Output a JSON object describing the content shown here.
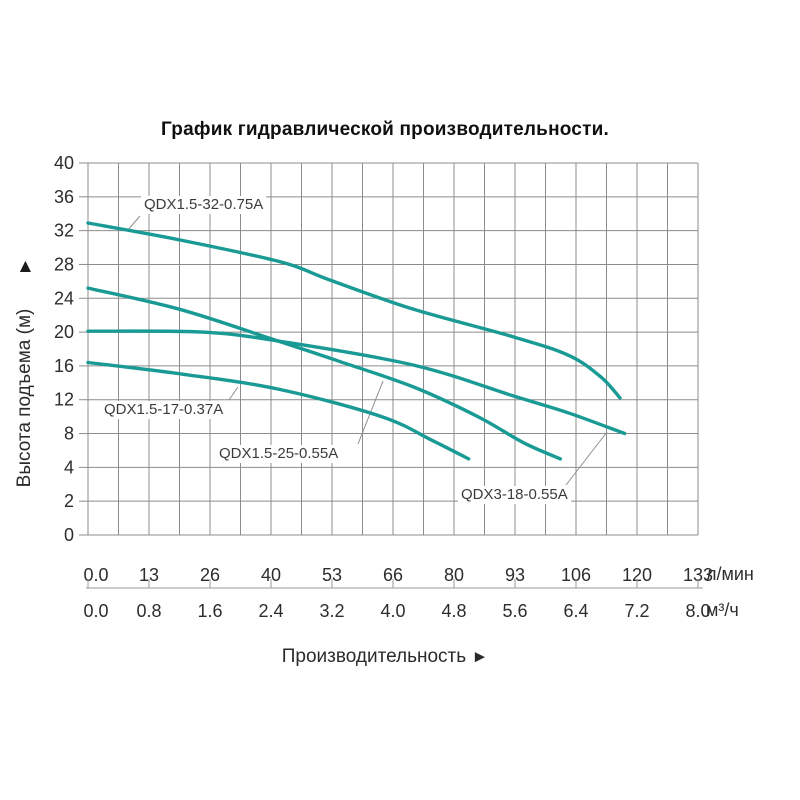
{
  "title": "График гидравлической производительности.",
  "chart_data": {
    "type": "line",
    "title": "График гидравлической производительности.",
    "xlabel": "Производительность",
    "xlabel_arrow": "►",
    "ylabel": "Высота подъема (м)",
    "ylabel_arrow": "▲",
    "grid": true,
    "legend_position": "inline-labels",
    "y_scale_note": "segmented axis: tick rows equally spaced",
    "x_axis": {
      "unit_primary": "л/мин",
      "ticks_primary": [
        "0.0",
        "13",
        "26",
        "40",
        "53",
        "66",
        "80",
        "93",
        "106",
        "120",
        "133"
      ],
      "unit_secondary": "м³/ч",
      "ticks_secondary": [
        "0.0",
        "0.8",
        "1.6",
        "2.4",
        "3.2",
        "4.0",
        "4.8",
        "5.6",
        "6.4",
        "7.2",
        "8.0"
      ],
      "xlim_lmin": [
        0,
        133
      ]
    },
    "y_axis": {
      "unit": "м",
      "ticks_top_to_bottom": [
        "40",
        "36",
        "32",
        "28",
        "24",
        "20",
        "16",
        "12",
        "8",
        "4",
        "2",
        "0"
      ]
    },
    "series": [
      {
        "name": "QDX1.5-32-0.75A",
        "points_lmin_m": [
          [
            0,
            32.9
          ],
          [
            20,
            30.9
          ],
          [
            42,
            28.3
          ],
          [
            53,
            26.1
          ],
          [
            71,
            22.7
          ],
          [
            93,
            19.4
          ],
          [
            105,
            17.2
          ],
          [
            112,
            14.6
          ],
          [
            116,
            12.2
          ]
        ]
      },
      {
        "name": "QDX1.5-25-0.55A",
        "points_lmin_m": [
          [
            0,
            25.2
          ],
          [
            20,
            22.7
          ],
          [
            40,
            19.2
          ],
          [
            55,
            16.5
          ],
          [
            71,
            13.5
          ],
          [
            85,
            10.0
          ],
          [
            95,
            6.9
          ],
          [
            103,
            5.0
          ]
        ]
      },
      {
        "name": "QDX3-18-0.55A",
        "points_lmin_m": [
          [
            0,
            20.1
          ],
          [
            25,
            20.0
          ],
          [
            42,
            18.9
          ],
          [
            71,
            16.1
          ],
          [
            93,
            12.4
          ],
          [
            105,
            10.4
          ],
          [
            117,
            8.0
          ]
        ]
      },
      {
        "name": "QDX1.5-17-0.37A",
        "points_lmin_m": [
          [
            0,
            16.4
          ],
          [
            21,
            15.0
          ],
          [
            42,
            13.2
          ],
          [
            64,
            10.0
          ],
          [
            75,
            7.2
          ],
          [
            83,
            5.0
          ]
        ]
      }
    ],
    "colors": {
      "curve": "#1a9a94",
      "grid": "#8c8c8c",
      "axis_text": "#2d2d2d",
      "label_text": "#3b3b3b",
      "leader_line": "#8f8f8f"
    }
  }
}
